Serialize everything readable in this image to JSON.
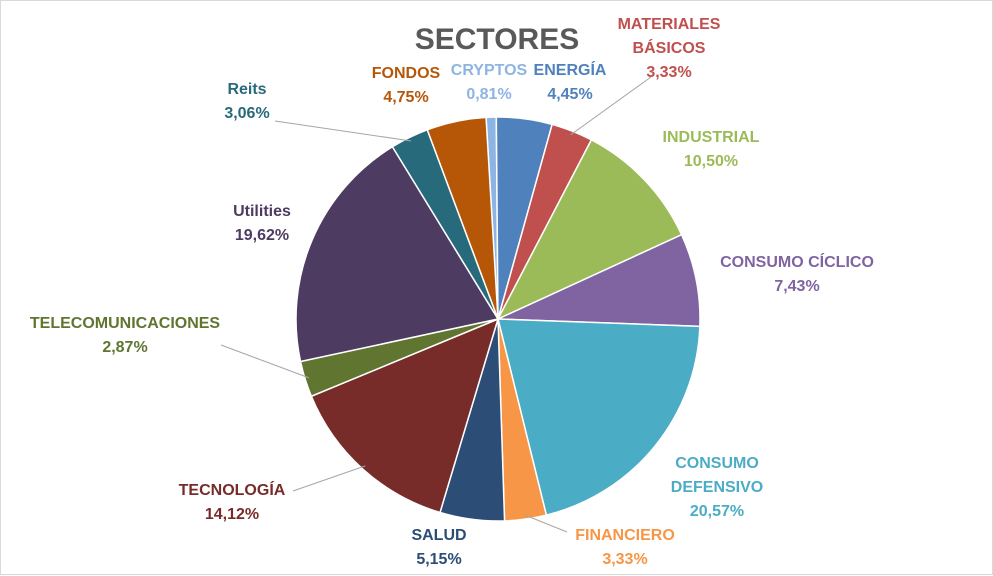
{
  "chart_data": {
    "type": "pie",
    "title": "SECTORES",
    "slices": [
      {
        "label": "CRYPTOS",
        "label_lines": [
          "CRYPTOS"
        ],
        "value_label": "0,81%",
        "value": 0.81,
        "color": "#8eb4e3",
        "text_color": "#8eb4e3"
      },
      {
        "label": "ENERGÍA",
        "label_lines": [
          "ENERGÍA"
        ],
        "value_label": "4,45%",
        "value": 4.45,
        "color": "#4f81bd",
        "text_color": "#4f81bd"
      },
      {
        "label": "MATERIALES BÁSICOS",
        "label_lines": [
          "MATERIALES",
          "BÁSICOS"
        ],
        "value_label": "3,33%",
        "value": 3.33,
        "color": "#c0504d",
        "text_color": "#c0504d"
      },
      {
        "label": "INDUSTRIAL",
        "label_lines": [
          "INDUSTRIAL"
        ],
        "value_label": "10,50%",
        "value": 10.5,
        "color": "#9bbb59",
        "text_color": "#9bbb59"
      },
      {
        "label": "CONSUMO CÍCLICO",
        "label_lines": [
          "CONSUMO CÍCLICO"
        ],
        "value_label": "7,43%",
        "value": 7.43,
        "color": "#8064a2",
        "text_color": "#8064a2"
      },
      {
        "label": "CONSUMO DEFENSIVO",
        "label_lines": [
          "CONSUMO",
          "DEFENSIVO"
        ],
        "value_label": "20,57%",
        "value": 20.57,
        "color": "#4bacc6",
        "text_color": "#4bacc6"
      },
      {
        "label": "FINANCIERO",
        "label_lines": [
          "FINANCIERO"
        ],
        "value_label": "3,33%",
        "value": 3.33,
        "color": "#f79646",
        "text_color": "#f79646"
      },
      {
        "label": "SALUD",
        "label_lines": [
          "SALUD"
        ],
        "value_label": "5,15%",
        "value": 5.15,
        "color": "#2c4d75",
        "text_color": "#2c4d75"
      },
      {
        "label": "TECNOLOGÍA",
        "label_lines": [
          "TECNOLOGÍA"
        ],
        "value_label": "14,12%",
        "value": 14.12,
        "color": "#772c2a",
        "text_color": "#772c2a"
      },
      {
        "label": "TELECOMUNICACIONES",
        "label_lines": [
          "TELECOMUNICACIONES"
        ],
        "value_label": "2,87%",
        "value": 2.87,
        "color": "#5f7530",
        "text_color": "#5f7530"
      },
      {
        "label": "Utilities",
        "label_lines": [
          "Utilities"
        ],
        "value_label": "19,62%",
        "value": 19.62,
        "color": "#4d3b62",
        "text_color": "#4d3b62"
      },
      {
        "label": "Reits",
        "label_lines": [
          "Reits"
        ],
        "value_label": "3,06%",
        "value": 3.06,
        "color": "#276a7c",
        "text_color": "#276a7c"
      },
      {
        "label": "FONDOS",
        "label_lines": [
          "FONDOS"
        ],
        "value_label": "4,75%",
        "value": 4.75,
        "color": "#b65708",
        "text_color": "#b65708"
      }
    ]
  }
}
